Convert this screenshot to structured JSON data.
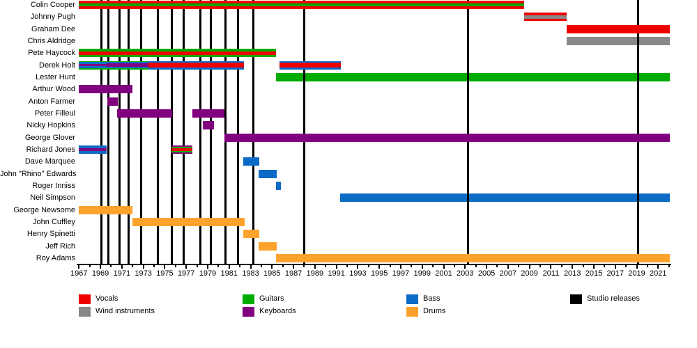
{
  "chart_data": {
    "type": "bar",
    "variant": "band-members-gantt-timeline",
    "title": "",
    "x_axis": {
      "start": 1967,
      "end": 2022.1,
      "tick_interval_years": 1,
      "label_interval_years": 2,
      "labeled_years": [
        1967,
        1969,
        1971,
        1973,
        1975,
        1977,
        1979,
        1981,
        1983,
        1985,
        1987,
        1989,
        1991,
        1993,
        1995,
        1997,
        1999,
        2001,
        2003,
        2005,
        2007,
        2009,
        2011,
        2013,
        2015,
        2017,
        2019,
        2021
      ]
    },
    "colors": {
      "red": "#ee0000",
      "gray": "#888888",
      "green": "#00ac00",
      "purple": "#800080",
      "blue": "#0b6bc7",
      "orange": "#fda32c",
      "black": "#000000"
    },
    "legend": [
      {
        "key": "vocals",
        "label": "Vocals",
        "color": "red",
        "col": 0,
        "row": 0
      },
      {
        "key": "wind-instruments",
        "label": "Wind instruments",
        "color": "gray",
        "col": 0,
        "row": 1
      },
      {
        "key": "guitars",
        "label": "Guitars",
        "color": "green",
        "col": 1,
        "row": 0
      },
      {
        "key": "keyboards",
        "label": "Keyboards",
        "color": "purple",
        "col": 1,
        "row": 1
      },
      {
        "key": "bass",
        "label": "Bass",
        "color": "blue",
        "col": 2,
        "row": 0
      },
      {
        "key": "drums",
        "label": "Drums",
        "color": "orange",
        "col": 2,
        "row": 1
      },
      {
        "key": "studio-releases",
        "label": "Studio releases",
        "color": "black",
        "col": 3,
        "row": 0
      }
    ],
    "studio_release_lines": [
      1969.1,
      1969.75,
      1970.8,
      1971.6,
      1972.8,
      1974.35,
      1975.65,
      1976.75,
      1978.3,
      1979.3,
      1980.65,
      1981.85,
      1983.25,
      1988.0,
      2003.3,
      2019.1
    ],
    "members": [
      {
        "name": "Colin Cooper",
        "bars": [
          {
            "from": 1967,
            "to": 2008.5,
            "stripes": [
              [
                "red",
                3
              ],
              [
                "green",
                4
              ],
              [
                "red",
                3
              ]
            ]
          }
        ]
      },
      {
        "name": "Johnny Pugh",
        "bars": [
          {
            "from": 2008.5,
            "to": 2012.5,
            "stripes": [
              [
                "red",
                3
              ],
              [
                "gray",
                4
              ],
              [
                "red",
                3
              ]
            ]
          }
        ]
      },
      {
        "name": "Graham Dee",
        "bars": [
          {
            "from": 2012.5,
            "to": 2022.1,
            "stripes": [
              [
                "red",
                1
              ]
            ]
          }
        ]
      },
      {
        "name": "Chris Aldridge",
        "under_release_lines": true,
        "bars": [
          {
            "from": 2012.5,
            "to": 2022.1,
            "stripes": [
              [
                "gray",
                1
              ]
            ]
          }
        ]
      },
      {
        "name": "Pete Haycock",
        "bars": [
          {
            "from": 1967,
            "to": 1985.4,
            "stripes": [
              [
                "green",
                3
              ],
              [
                "red",
                4
              ],
              [
                "green",
                3
              ]
            ]
          }
        ]
      },
      {
        "name": "Derek Holt",
        "bars": [
          {
            "from": 1967,
            "to": 1969.55,
            "stripes": [
              [
                "green",
                1.5
              ],
              [
                "blue",
                2.5
              ],
              [
                "purple",
                3
              ],
              [
                "blue",
                2.5
              ],
              [
                "green",
                1.5
              ]
            ]
          },
          {
            "from": 1969.55,
            "to": 1973.5,
            "stripes": [
              [
                "green",
                1.5
              ],
              [
                "blue",
                1.5
              ],
              [
                "purple",
                5
              ],
              [
                "blue",
                1.5
              ],
              [
                "green",
                1.5
              ]
            ]
          },
          {
            "from": 1973.5,
            "to": 1982.4,
            "stripes": [
              [
                "blue",
                2.5
              ],
              [
                "red",
                6
              ],
              [
                "blue",
                2.5
              ]
            ]
          },
          {
            "from": 1985.7,
            "to": 1991.4,
            "stripes": [
              [
                "blue",
                2.5
              ],
              [
                "red",
                6
              ],
              [
                "blue",
                2.5
              ]
            ]
          }
        ]
      },
      {
        "name": "Lester Hunt",
        "under_release_lines": true,
        "bars": [
          {
            "from": 1985.4,
            "to": 2022.1,
            "stripes": [
              [
                "green",
                1
              ]
            ]
          }
        ]
      },
      {
        "name": "Arthur Wood",
        "bars": [
          {
            "from": 1967,
            "to": 1972,
            "stripes": [
              [
                "purple",
                1
              ]
            ]
          }
        ]
      },
      {
        "name": "Anton Farmer",
        "bars": [
          {
            "from": 1969.65,
            "to": 1970.6,
            "stripes": [
              [
                "purple",
                1
              ]
            ]
          }
        ]
      },
      {
        "name": "Peter Filleul",
        "bars": [
          {
            "from": 1970.55,
            "to": 1975.7,
            "stripes": [
              [
                "purple",
                1
              ]
            ]
          },
          {
            "from": 1977.55,
            "to": 1980.55,
            "stripes": [
              [
                "purple",
                1
              ]
            ]
          }
        ]
      },
      {
        "name": "Nicky Hopkins",
        "bars": [
          {
            "from": 1978.55,
            "to": 1979.6,
            "stripes": [
              [
                "purple",
                1
              ]
            ]
          }
        ]
      },
      {
        "name": "George Glover",
        "bars": [
          {
            "from": 1980.55,
            "to": 2022.1,
            "stripes": [
              [
                "purple",
                1
              ]
            ]
          }
        ]
      },
      {
        "name": "Richard Jones",
        "bars": [
          {
            "from": 1967,
            "to": 1969.6,
            "stripes": [
              [
                "blue",
                3.5
              ],
              [
                "purple",
                4
              ],
              [
                "blue",
                3.5
              ]
            ]
          },
          {
            "from": 1975.65,
            "to": 1977.6,
            "stripes": [
              [
                "purple",
                2
              ],
              [
                "green",
                2
              ],
              [
                "red",
                3
              ],
              [
                "green",
                2
              ],
              [
                "purple",
                2
              ]
            ]
          }
        ]
      },
      {
        "name": "Dave Marquee",
        "bars": [
          {
            "from": 1982.3,
            "to": 1983.8,
            "stripes": [
              [
                "blue",
                1
              ]
            ]
          }
        ]
      },
      {
        "name": "John \"Rhino\" Edwards",
        "bars": [
          {
            "from": 1983.75,
            "to": 1985.45,
            "stripes": [
              [
                "blue",
                1
              ]
            ]
          }
        ]
      },
      {
        "name": "Roger Inniss",
        "bars": [
          {
            "from": 1985.4,
            "to": 1985.8,
            "stripes": [
              [
                "blue",
                1
              ]
            ]
          }
        ]
      },
      {
        "name": "Neil Simpson",
        "under_release_lines": true,
        "bars": [
          {
            "from": 1991.35,
            "to": 2022.1,
            "stripes": [
              [
                "blue",
                1
              ]
            ]
          }
        ]
      },
      {
        "name": "George Newsome",
        "bars": [
          {
            "from": 1967,
            "to": 1972,
            "stripes": [
              [
                "orange",
                1
              ]
            ]
          }
        ]
      },
      {
        "name": "John Cuffley",
        "bars": [
          {
            "from": 1972,
            "to": 1982.45,
            "stripes": [
              [
                "orange",
                1
              ]
            ]
          }
        ]
      },
      {
        "name": "Henry Spinetti",
        "bars": [
          {
            "from": 1982.3,
            "to": 1983.8,
            "stripes": [
              [
                "orange",
                1
              ]
            ]
          }
        ]
      },
      {
        "name": "Jeff Rich",
        "bars": [
          {
            "from": 1983.75,
            "to": 1985.45,
            "stripes": [
              [
                "orange",
                1
              ]
            ]
          }
        ]
      },
      {
        "name": "Roy Adams",
        "bars": [
          {
            "from": 1985.4,
            "to": 2022.1,
            "stripes": [
              [
                "orange",
                1
              ]
            ]
          }
        ]
      }
    ]
  }
}
